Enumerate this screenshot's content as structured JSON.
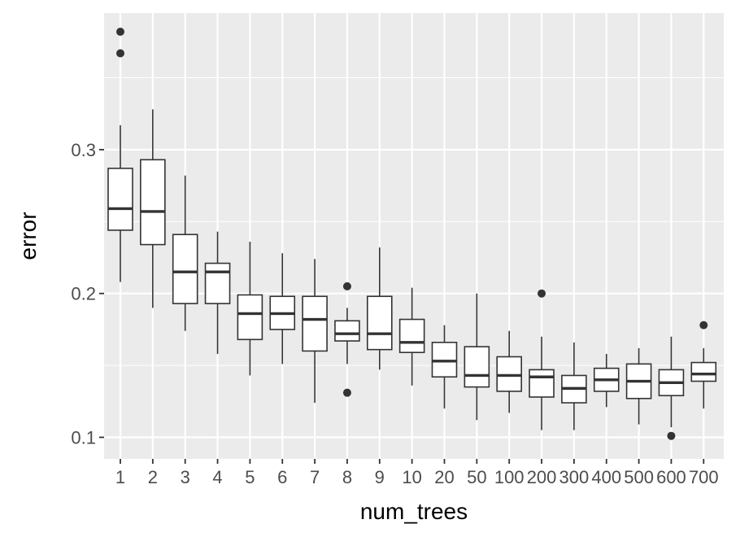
{
  "chart_data": {
    "type": "boxplot",
    "xlabel": "num_trees",
    "ylabel": "error",
    "ylim": [
      0.085,
      0.395
    ],
    "yticks": [
      0.1,
      0.2,
      0.3
    ],
    "ytick_labels": [
      "0.1",
      "0.2",
      "0.3"
    ],
    "grid": true,
    "legend": "none",
    "colors": {
      "panel": "#EBEBEB",
      "grid": "#FFFFFF",
      "box_fill": "#FFFFFF",
      "box_stroke": "#333333",
      "point": "#333333"
    },
    "categories": [
      "1",
      "2",
      "3",
      "4",
      "5",
      "6",
      "7",
      "8",
      "9",
      "10",
      "20",
      "50",
      "100",
      "200",
      "300",
      "400",
      "500",
      "600",
      "700"
    ],
    "boxes": [
      {
        "lower_whisker": 0.208,
        "q1": 0.244,
        "median": 0.259,
        "q3": 0.287,
        "upper_whisker": 0.317,
        "outliers": [
          0.367,
          0.382
        ]
      },
      {
        "lower_whisker": 0.19,
        "q1": 0.234,
        "median": 0.257,
        "q3": 0.293,
        "upper_whisker": 0.328,
        "outliers": []
      },
      {
        "lower_whisker": 0.174,
        "q1": 0.193,
        "median": 0.215,
        "q3": 0.241,
        "upper_whisker": 0.282,
        "outliers": []
      },
      {
        "lower_whisker": 0.158,
        "q1": 0.193,
        "median": 0.215,
        "q3": 0.221,
        "upper_whisker": 0.243,
        "outliers": []
      },
      {
        "lower_whisker": 0.143,
        "q1": 0.168,
        "median": 0.186,
        "q3": 0.199,
        "upper_whisker": 0.236,
        "outliers": []
      },
      {
        "lower_whisker": 0.151,
        "q1": 0.175,
        "median": 0.186,
        "q3": 0.198,
        "upper_whisker": 0.228,
        "outliers": []
      },
      {
        "lower_whisker": 0.124,
        "q1": 0.16,
        "median": 0.182,
        "q3": 0.198,
        "upper_whisker": 0.224,
        "outliers": []
      },
      {
        "lower_whisker": 0.151,
        "q1": 0.167,
        "median": 0.172,
        "q3": 0.181,
        "upper_whisker": 0.19,
        "outliers": [
          0.205,
          0.131
        ]
      },
      {
        "lower_whisker": 0.147,
        "q1": 0.161,
        "median": 0.172,
        "q3": 0.198,
        "upper_whisker": 0.232,
        "outliers": []
      },
      {
        "lower_whisker": 0.136,
        "q1": 0.159,
        "median": 0.166,
        "q3": 0.182,
        "upper_whisker": 0.204,
        "outliers": []
      },
      {
        "lower_whisker": 0.12,
        "q1": 0.142,
        "median": 0.153,
        "q3": 0.166,
        "upper_whisker": 0.178,
        "outliers": []
      },
      {
        "lower_whisker": 0.112,
        "q1": 0.135,
        "median": 0.143,
        "q3": 0.163,
        "upper_whisker": 0.2,
        "outliers": []
      },
      {
        "lower_whisker": 0.117,
        "q1": 0.132,
        "median": 0.143,
        "q3": 0.156,
        "upper_whisker": 0.174,
        "outliers": []
      },
      {
        "lower_whisker": 0.105,
        "q1": 0.128,
        "median": 0.142,
        "q3": 0.147,
        "upper_whisker": 0.17,
        "outliers": [
          0.2
        ]
      },
      {
        "lower_whisker": 0.105,
        "q1": 0.124,
        "median": 0.134,
        "q3": 0.143,
        "upper_whisker": 0.166,
        "outliers": []
      },
      {
        "lower_whisker": 0.121,
        "q1": 0.132,
        "median": 0.14,
        "q3": 0.148,
        "upper_whisker": 0.158,
        "outliers": []
      },
      {
        "lower_whisker": 0.109,
        "q1": 0.127,
        "median": 0.139,
        "q3": 0.151,
        "upper_whisker": 0.162,
        "outliers": []
      },
      {
        "lower_whisker": 0.107,
        "q1": 0.129,
        "median": 0.138,
        "q3": 0.147,
        "upper_whisker": 0.17,
        "outliers": [
          0.101
        ]
      },
      {
        "lower_whisker": 0.12,
        "q1": 0.139,
        "median": 0.144,
        "q3": 0.152,
        "upper_whisker": 0.162,
        "outliers": [
          0.178
        ]
      }
    ]
  }
}
